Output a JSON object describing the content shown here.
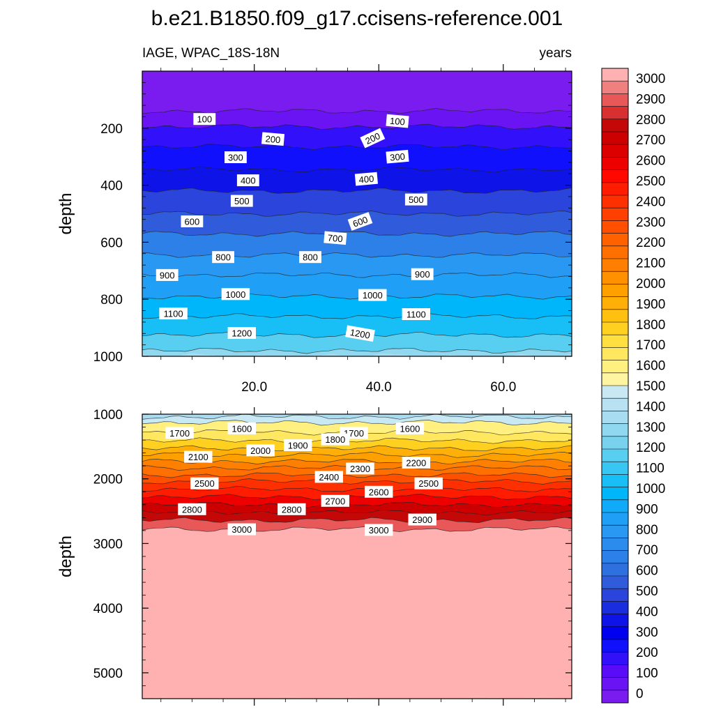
{
  "figure": {
    "title": "b.e21.B1850.f09_g17.ccisens-reference.001",
    "left_subtitle": "IAGE, WPAC_18S-18N",
    "right_subtitle": "years"
  },
  "chart_data": [
    {
      "type": "contour",
      "panel": "upper",
      "variable": "IAGE",
      "units": "years",
      "xlabel": "",
      "ylabel": "depth",
      "xlim": [
        2,
        71
      ],
      "ylim": [
        1000,
        0
      ],
      "x_ticks": [
        20,
        40,
        60
      ],
      "x_tick_labels": [
        "20.0",
        "40.0",
        "60.0"
      ],
      "y_ticks": [
        200,
        400,
        600,
        800,
        1000
      ],
      "y_tick_labels": [
        "200",
        "400",
        "600",
        "800",
        "1000"
      ],
      "contour_levels": [
        0,
        100,
        200,
        300,
        400,
        500,
        600,
        700,
        800,
        900,
        1000,
        1100,
        1200,
        1300,
        1400,
        1500
      ],
      "level_depth_profile": [
        {
          "age": 0,
          "depth": 0
        },
        {
          "age": 100,
          "depth": 140
        },
        {
          "age": 200,
          "depth": 195
        },
        {
          "age": 300,
          "depth": 265
        },
        {
          "age": 400,
          "depth": 345
        },
        {
          "age": 500,
          "depth": 420
        },
        {
          "age": 600,
          "depth": 500
        },
        {
          "age": 700,
          "depth": 570
        },
        {
          "age": 800,
          "depth": 645
        },
        {
          "age": 900,
          "depth": 715
        },
        {
          "age": 1000,
          "depth": 790
        },
        {
          "age": 1100,
          "depth": 860
        },
        {
          "age": 1200,
          "depth": 925
        },
        {
          "age": 1300,
          "depth": 980
        },
        {
          "age": 1400,
          "depth": 1000
        }
      ],
      "contour_labels": [
        {
          "text": "100",
          "x": 12,
          "depth": 168,
          "angle": 0
        },
        {
          "text": "100",
          "x": 43,
          "depth": 175,
          "angle": 5
        },
        {
          "text": "200",
          "x": 23,
          "depth": 238,
          "angle": 5
        },
        {
          "text": "200",
          "x": 39,
          "depth": 235,
          "angle": -25
        },
        {
          "text": "300",
          "x": 17,
          "depth": 302,
          "angle": 0
        },
        {
          "text": "300",
          "x": 43,
          "depth": 300,
          "angle": -5
        },
        {
          "text": "400",
          "x": 19,
          "depth": 383,
          "angle": 0
        },
        {
          "text": "400",
          "x": 38,
          "depth": 378,
          "angle": -5
        },
        {
          "text": "500",
          "x": 18,
          "depth": 455,
          "angle": 0
        },
        {
          "text": "500",
          "x": 46,
          "depth": 450,
          "angle": 0
        },
        {
          "text": "600",
          "x": 10,
          "depth": 527,
          "angle": 0
        },
        {
          "text": "600",
          "x": 37,
          "depth": 527,
          "angle": -20
        },
        {
          "text": "700",
          "x": 33,
          "depth": 585,
          "angle": 5
        },
        {
          "text": "800",
          "x": 15,
          "depth": 652,
          "angle": 0
        },
        {
          "text": "800",
          "x": 29,
          "depth": 652,
          "angle": 0
        },
        {
          "text": "900",
          "x": 6,
          "depth": 715,
          "angle": 0
        },
        {
          "text": "900",
          "x": 47,
          "depth": 712,
          "angle": 0
        },
        {
          "text": "1000",
          "x": 17,
          "depth": 782,
          "angle": 0
        },
        {
          "text": "1000",
          "x": 39,
          "depth": 785,
          "angle": 0
        },
        {
          "text": "1100",
          "x": 7,
          "depth": 850,
          "angle": 0
        },
        {
          "text": "1100",
          "x": 46,
          "depth": 852,
          "angle": 0
        },
        {
          "text": "1200",
          "x": 18,
          "depth": 918,
          "angle": 0
        },
        {
          "text": "1200",
          "x": 37,
          "depth": 920,
          "angle": 10
        }
      ]
    },
    {
      "type": "contour",
      "panel": "lower",
      "variable": "IAGE",
      "units": "years",
      "xlabel": "",
      "ylabel": "depth",
      "xlim": [
        2,
        71
      ],
      "ylim": [
        5400,
        1000
      ],
      "y_ticks": [
        1000,
        2000,
        3000,
        4000,
        5000
      ],
      "y_tick_labels": [
        "1000",
        "2000",
        "3000",
        "4000",
        "5000"
      ],
      "contour_levels": [
        1400,
        1500,
        1600,
        1700,
        1800,
        1900,
        2000,
        2100,
        2200,
        2300,
        2400,
        2500,
        2600,
        2700,
        2800,
        2900,
        3000
      ],
      "level_depth_profile": [
        {
          "age": 1400,
          "depth": 1000
        },
        {
          "age": 1500,
          "depth": 1040
        },
        {
          "age": 1600,
          "depth": 1130
        },
        {
          "age": 1700,
          "depth": 1280
        },
        {
          "age": 1800,
          "depth": 1410
        },
        {
          "age": 1900,
          "depth": 1530
        },
        {
          "age": 2000,
          "depth": 1630
        },
        {
          "age": 2100,
          "depth": 1730
        },
        {
          "age": 2200,
          "depth": 1830
        },
        {
          "age": 2300,
          "depth": 1940
        },
        {
          "age": 2400,
          "depth": 2040
        },
        {
          "age": 2500,
          "depth": 2160
        },
        {
          "age": 2600,
          "depth": 2280
        },
        {
          "age": 2700,
          "depth": 2400
        },
        {
          "age": 2800,
          "depth": 2520
        },
        {
          "age": 2900,
          "depth": 2640
        },
        {
          "age": 3000,
          "depth": 2780
        },
        {
          "age": 3010,
          "depth": 5400
        }
      ],
      "contour_labels": [
        {
          "text": "1700",
          "x": 8,
          "depth": 1290,
          "angle": 0
        },
        {
          "text": "1600",
          "x": 18,
          "depth": 1220,
          "angle": 0
        },
        {
          "text": "1700",
          "x": 36,
          "depth": 1290,
          "angle": 0
        },
        {
          "text": "1600",
          "x": 45,
          "depth": 1220,
          "angle": 0
        },
        {
          "text": "2000",
          "x": 21,
          "depth": 1560,
          "angle": 0
        },
        {
          "text": "1900",
          "x": 27,
          "depth": 1480,
          "angle": 0
        },
        {
          "text": "1800",
          "x": 33,
          "depth": 1390,
          "angle": 0
        },
        {
          "text": "2100",
          "x": 11,
          "depth": 1660,
          "angle": 0
        },
        {
          "text": "2200",
          "x": 46,
          "depth": 1750,
          "angle": 0
        },
        {
          "text": "2300",
          "x": 37,
          "depth": 1840,
          "angle": 0
        },
        {
          "text": "2400",
          "x": 32,
          "depth": 1970,
          "angle": 0
        },
        {
          "text": "2500",
          "x": 12,
          "depth": 2070,
          "angle": 0
        },
        {
          "text": "2500",
          "x": 48,
          "depth": 2070,
          "angle": 0
        },
        {
          "text": "2600",
          "x": 40,
          "depth": 2200,
          "angle": 0
        },
        {
          "text": "2700",
          "x": 33,
          "depth": 2340,
          "angle": 0
        },
        {
          "text": "2800",
          "x": 10,
          "depth": 2470,
          "angle": 0
        },
        {
          "text": "2800",
          "x": 26,
          "depth": 2470,
          "angle": 0
        },
        {
          "text": "2900",
          "x": 47,
          "depth": 2630,
          "angle": 0
        },
        {
          "text": "3000",
          "x": 18,
          "depth": 2780,
          "angle": 0
        },
        {
          "text": "3000",
          "x": 40,
          "depth": 2790,
          "angle": 0
        }
      ]
    }
  ],
  "colorbar": {
    "labels": [
      "0",
      "100",
      "200",
      "300",
      "400",
      "500",
      "600",
      "700",
      "800",
      "900",
      "1000",
      "1100",
      "1200",
      "1300",
      "1400",
      "1500",
      "1600",
      "1700",
      "1800",
      "1900",
      "2000",
      "2100",
      "2200",
      "2300",
      "2400",
      "2500",
      "2600",
      "2700",
      "2800",
      "2900",
      "3000"
    ],
    "colors": [
      "#7a1cf0",
      "#6a14f4",
      "#5a0cf8",
      "#3210fa",
      "#1010fc",
      "#0000f0",
      "#0e14e8",
      "#1a2ee0",
      "#2a44dc",
      "#305cdc",
      "#2f70e0",
      "#2c80e8",
      "#2c8cee",
      "#2898f2",
      "#209ff6",
      "#10aaf8",
      "#00b6fa",
      "#18bef6",
      "#38c6f2",
      "#58cef0",
      "#78d2ee",
      "#90d8f0",
      "#a8dcf0",
      "#b8e2f2",
      "#c8e8f4",
      "#fff4a0",
      "#fff080",
      "#ffe860",
      "#ffe040",
      "#ffd020",
      "#ffc010",
      "#ffb008",
      "#ffa000",
      "#ff9000",
      "#ff8000",
      "#ff7000",
      "#ff6000",
      "#ff5000",
      "#ff4000",
      "#ff3000",
      "#ff1c00",
      "#ff0800",
      "#ee0000",
      "#dd0000",
      "#cc0000",
      "#c40808",
      "#d83030",
      "#e85858",
      "#f08080",
      "#ffb0b0"
    ]
  }
}
